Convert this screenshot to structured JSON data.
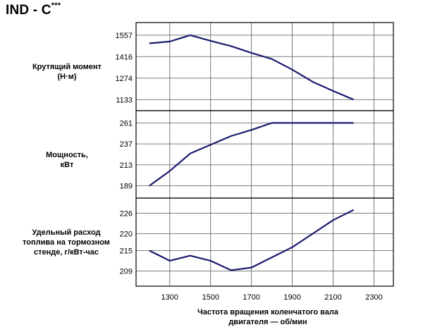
{
  "title": {
    "main": "IND - C",
    "sup": "***"
  },
  "chart_data": {
    "type": "line",
    "x": [
      1200,
      1300,
      1400,
      1500,
      1600,
      1700,
      1800,
      1900,
      2000,
      2100,
      2200
    ],
    "xticks": [
      "1300",
      "1500",
      "1700",
      "1900",
      "2100",
      "2300"
    ],
    "xtick_values": [
      1300,
      1500,
      1700,
      1900,
      2100,
      2300
    ],
    "xlim": [
      1135,
      2395
    ],
    "xlabel_line1": "Частота вращения коленчатого вала",
    "xlabel_line2": "двигателя — об/мин",
    "grid": true,
    "panels": [
      {
        "label_line1": "Крутящий момент",
        "label_line2": "(Н·м)",
        "yticks": [
          "1557",
          "1416",
          "1274",
          "1133"
        ],
        "ytick_values": [
          1557,
          1416,
          1274,
          1133
        ],
        "ylim": [
          1060,
          1640
        ],
        "values": [
          1503,
          1515,
          1557,
          1520,
          1485,
          1440,
          1400,
          1330,
          1250,
          1190,
          1133
        ],
        "color": "#1a1a6e"
      },
      {
        "label_line1": "Мощность,",
        "label_line2": "кВт",
        "yticks": [
          "261",
          "237",
          "213",
          "189"
        ],
        "ytick_values": [
          261,
          237,
          213,
          189
        ],
        "ylim": [
          175,
          275
        ],
        "values": [
          189,
          206,
          226,
          236,
          246,
          253,
          261,
          261,
          261,
          261,
          261
        ],
        "color": "#1a1a6e"
      },
      {
        "label_line1": "Удельный расход",
        "label_line2": "топлива на тормозном",
        "label_line3": "стенде, г/кВт-час",
        "yticks": [
          "226",
          "220",
          "215",
          "209"
        ],
        "ytick_values": [
          226,
          220,
          215,
          209
        ],
        "ylim": [
          204.5,
          230.5
        ],
        "values": [
          215,
          212,
          213.5,
          212,
          209.2,
          210,
          213,
          216,
          220,
          224,
          227
        ],
        "color": "#1a1a6e"
      }
    ]
  }
}
